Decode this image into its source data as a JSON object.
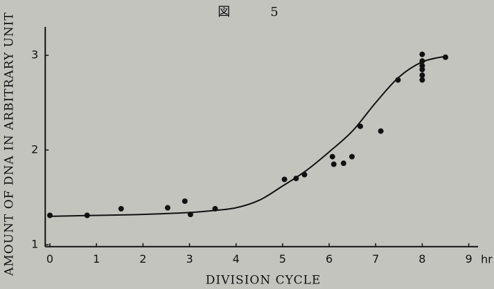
{
  "chart_data": {
    "type": "scatter",
    "title": "図　5",
    "x_label": "DIVISION CYCLE",
    "y_label": "AMOUNT OF DNA IN ARBITRARY UNIT",
    "x_unit": "hr",
    "xlim": [
      -0.1,
      9.2
    ],
    "ylim": [
      0.98,
      3.3
    ],
    "xticks": [
      0,
      1,
      2,
      3,
      4,
      5,
      6,
      7,
      8,
      9
    ],
    "yticks": [
      1,
      2,
      3
    ],
    "series": [
      {
        "color": "#111111",
        "x": [
          0,
          0.8,
          1.53,
          2.53,
          2.9,
          3.02,
          3.55,
          5.04,
          5.29,
          5.47,
          6.07,
          6.1,
          6.31,
          6.49,
          6.67,
          7.11,
          7.48,
          8.0,
          8.0,
          8.0,
          8.0,
          8.0,
          8.0,
          8.5
        ],
        "values": [
          1.31,
          1.31,
          1.38,
          1.39,
          1.46,
          1.32,
          1.38,
          1.69,
          1.7,
          1.74,
          1.93,
          1.85,
          1.86,
          1.93,
          2.25,
          2.2,
          2.74,
          3.01,
          2.94,
          2.89,
          2.85,
          2.79,
          2.74,
          2.98
        ]
      }
    ],
    "curve": {
      "color": "#111111",
      "x": [
        0,
        1,
        2,
        3,
        3.5,
        4,
        4.5,
        5,
        5.5,
        6,
        6.5,
        7,
        7.5,
        8,
        8.5
      ],
      "values": [
        1.3,
        1.31,
        1.32,
        1.34,
        1.36,
        1.39,
        1.47,
        1.62,
        1.78,
        1.98,
        2.2,
        2.5,
        2.77,
        2.93,
        2.99
      ]
    }
  }
}
